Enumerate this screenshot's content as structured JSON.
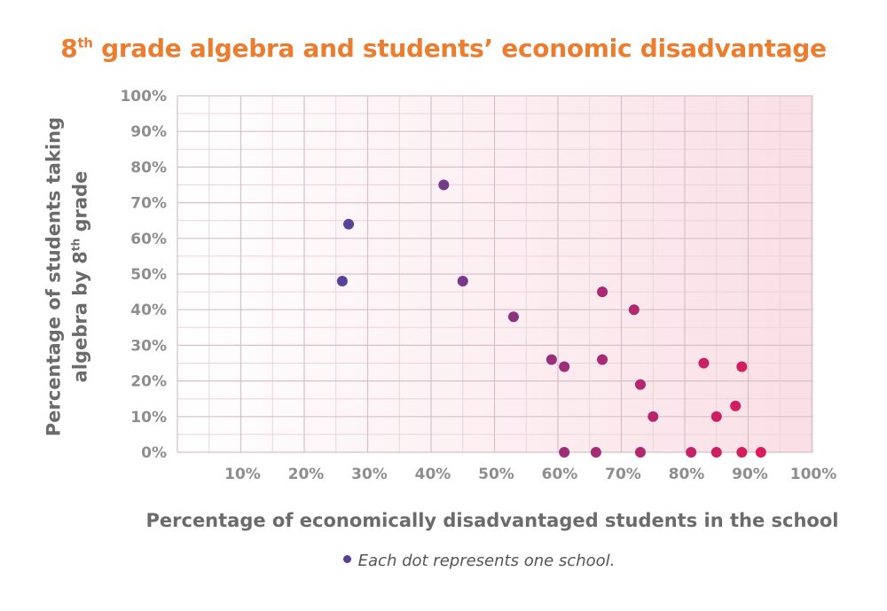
{
  "chart_data": {
    "type": "scatter",
    "title": "8th grade algebra and students’ economic disadvantage",
    "xlabel": "Percentage of economically disadvantaged students in the school",
    "ylabel_line1": "Percentage of students taking",
    "ylabel_line2": "algebra by 8th grade",
    "xlim": [
      0,
      100
    ],
    "ylim": [
      0,
      100
    ],
    "x_ticks": [
      "10%",
      "20%",
      "30%",
      "40%",
      "50%",
      "60%",
      "70%",
      "80%",
      "90%",
      "100%"
    ],
    "y_ticks": [
      "0%",
      "10%",
      "20%",
      "30%",
      "40%",
      "50%",
      "60%",
      "70%",
      "80%",
      "90%",
      "100%"
    ],
    "grid": true,
    "color_start": "#54449a",
    "color_end": "#e0195a",
    "points": [
      {
        "x": 26,
        "y": 48
      },
      {
        "x": 27,
        "y": 64
      },
      {
        "x": 42,
        "y": 75
      },
      {
        "x": 45,
        "y": 48
      },
      {
        "x": 53,
        "y": 38
      },
      {
        "x": 59,
        "y": 26
      },
      {
        "x": 61,
        "y": 24
      },
      {
        "x": 61,
        "y": 0
      },
      {
        "x": 66,
        "y": 0
      },
      {
        "x": 67,
        "y": 45
      },
      {
        "x": 67,
        "y": 26
      },
      {
        "x": 72,
        "y": 40
      },
      {
        "x": 73,
        "y": 19
      },
      {
        "x": 73,
        "y": 0
      },
      {
        "x": 75,
        "y": 10
      },
      {
        "x": 81,
        "y": 0
      },
      {
        "x": 83,
        "y": 25
      },
      {
        "x": 85,
        "y": 10
      },
      {
        "x": 85,
        "y": 0
      },
      {
        "x": 88,
        "y": 13
      },
      {
        "x": 89,
        "y": 24
      },
      {
        "x": 89,
        "y": 0
      },
      {
        "x": 92,
        "y": 0
      }
    ]
  },
  "legend": {
    "text": "Each dot represents one school.",
    "dot_color": "#5b3e93"
  }
}
